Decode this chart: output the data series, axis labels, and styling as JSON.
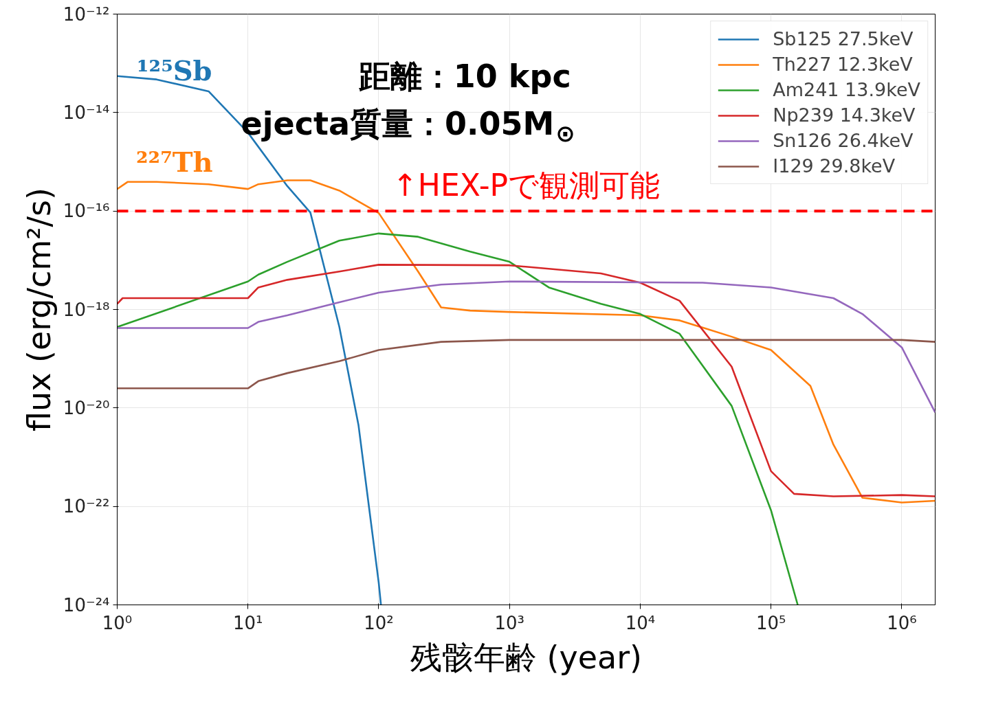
{
  "chart_data": {
    "type": "line",
    "xlabel": "残骸年齢 (year)",
    "ylabel": "flux (erg/cm²/s)",
    "log": "xy",
    "grid": true,
    "legend": "top right",
    "line_style": "solid",
    "marker": "none",
    "xlim": [
      1,
      1800000
    ],
    "ylim": [
      1e-24,
      1e-12
    ],
    "xticks": [
      {
        "value": 1,
        "label": "10⁰"
      },
      {
        "value": 10,
        "label": "10¹"
      },
      {
        "value": 100,
        "label": "10²"
      },
      {
        "value": 1000,
        "label": "10³"
      },
      {
        "value": 10000,
        "label": "10⁴"
      },
      {
        "value": 100000,
        "label": "10⁵"
      },
      {
        "value": 1000000,
        "label": "10⁶"
      }
    ],
    "yticks": [
      {
        "value": 1e-24,
        "label": "10⁻²⁴"
      },
      {
        "value": 1e-22,
        "label": "10⁻²²"
      },
      {
        "value": 1e-20,
        "label": "10⁻²⁰"
      },
      {
        "value": 1e-18,
        "label": "10⁻¹⁸"
      },
      {
        "value": 1e-16,
        "label": "10⁻¹⁶"
      },
      {
        "value": 1e-14,
        "label": "10⁻¹⁴"
      },
      {
        "value": 1e-12,
        "label": "10⁻¹²"
      }
    ],
    "series": [
      {
        "name": "Sb125 27.5keV",
        "color": "#1f77b4",
        "x": [
          1,
          2,
          5,
          10,
          20,
          30,
          50,
          70,
          100,
          104
        ],
        "values": [
          5.5e-14,
          4.7e-14,
          2.7e-14,
          3.9e-15,
          3.2e-16,
          9.3e-17,
          4.4e-19,
          4.5e-21,
          2.8e-24,
          1e-24
        ]
      },
      {
        "name": "Th227 12.3keV",
        "color": "#ff7f0e",
        "x": [
          1,
          1.2,
          2,
          5,
          10,
          12,
          20,
          30,
          50,
          100,
          200,
          300,
          500,
          1000,
          10000,
          20000,
          50000,
          100000,
          200000,
          300000,
          500000,
          1000000,
          1800000
        ],
        "values": [
          2.8e-16,
          3.9e-16,
          3.9e-16,
          3.5e-16,
          2.8e-16,
          3.5e-16,
          4.2e-16,
          4.2e-16,
          2.6e-16,
          9.1e-17,
          5.9e-18,
          1.1e-18,
          9.5e-19,
          8.9e-19,
          7.6e-19,
          6e-19,
          2.8e-19,
          1.5e-19,
          2.8e-20,
          1.8e-21,
          1.5e-22,
          1.2e-22,
          1.3e-22
        ]
      },
      {
        "name": "Am241 13.9keV",
        "color": "#2ca02c",
        "x": [
          1,
          10,
          12,
          20,
          50,
          100,
          200,
          500,
          1000,
          2000,
          5000,
          10000,
          20000,
          50000,
          100000,
          160000
        ],
        "values": [
          4.4e-19,
          3.7e-18,
          5.1e-18,
          9.3e-18,
          2.5e-17,
          3.5e-17,
          3e-17,
          1.5e-17,
          9.3e-18,
          2.8e-18,
          1.3e-18,
          8.1e-19,
          3.2e-19,
          1.1e-20,
          8.3e-23,
          1e-24
        ]
      },
      {
        "name": "Np239 14.3keV",
        "color": "#d62728",
        "x": [
          1,
          1.1,
          10,
          12,
          20,
          50,
          100,
          1000,
          5000,
          10000,
          20000,
          50000,
          100000,
          150000,
          300000,
          1000000,
          1800000
        ],
        "values": [
          1.3e-18,
          1.7e-18,
          1.7e-18,
          2.8e-18,
          4e-18,
          5.9e-18,
          8.1e-18,
          7.9e-18,
          5.4e-18,
          3.5e-18,
          1.5e-18,
          6.9e-20,
          5.2e-22,
          1.8e-22,
          1.6e-22,
          1.7e-22,
          1.6e-22
        ]
      },
      {
        "name": "Sn126 26.4keV",
        "color": "#9467bd",
        "x": [
          1,
          10,
          12,
          20,
          50,
          100,
          300,
          1000,
          30000,
          100000,
          300000,
          500000,
          1000000,
          1800000
        ],
        "values": [
          4.2e-19,
          4.2e-19,
          5.6e-19,
          7.6e-19,
          1.4e-18,
          2.2e-18,
          3.2e-18,
          3.7e-18,
          3.5e-18,
          2.8e-18,
          1.7e-18,
          8.1e-19,
          1.7e-19,
          8.1e-21
        ]
      },
      {
        "name": "I129 29.8keV",
        "color": "#8c564b",
        "x": [
          1,
          10,
          12,
          20,
          50,
          100,
          300,
          1000,
          1000000,
          1800000
        ],
        "values": [
          2.5e-20,
          2.5e-20,
          3.5e-20,
          5.1e-20,
          8.9e-20,
          1.5e-19,
          2.2e-19,
          2.4e-19,
          2.4e-19,
          2.2e-19
        ]
      }
    ],
    "ref_lines": [
      {
        "axis": "y",
        "value": 1e-16,
        "label": "↑HEX-Pで観測可能",
        "color": "#ff0000",
        "line_style": "dashed"
      }
    ],
    "annotations": [
      "¹²⁵Sb",
      "²²⁷Th",
      "距離：10 kpc",
      "ejecta質量：0.05M$_{⊙}$"
    ]
  }
}
